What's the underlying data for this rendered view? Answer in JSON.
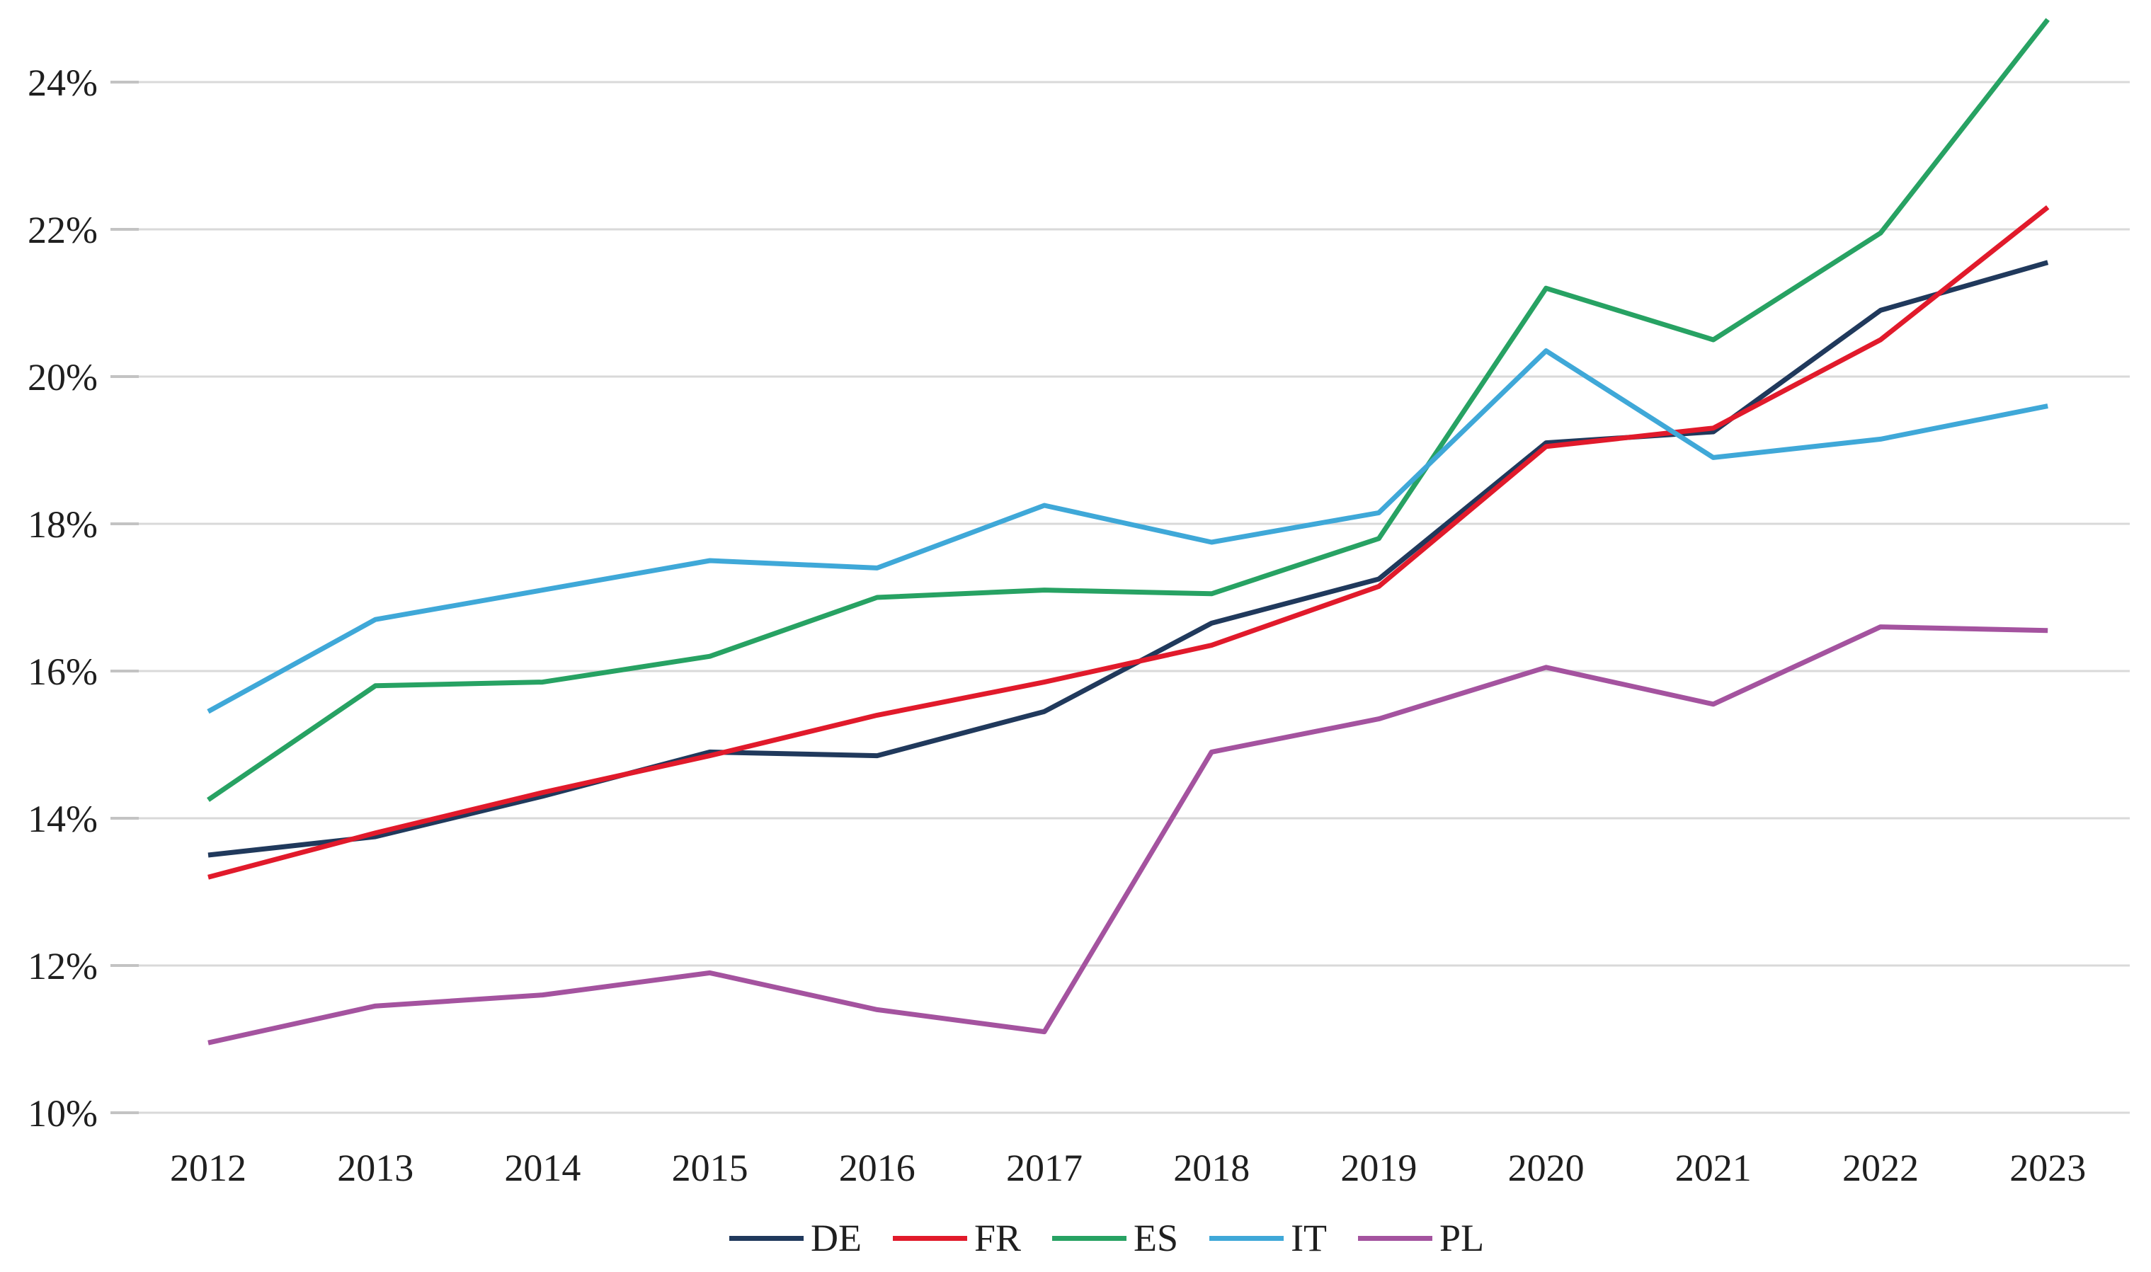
{
  "figure": {
    "background_color": "#ffffff",
    "text_color": "#1f1f1f"
  },
  "chart_data": {
    "type": "line",
    "title": "",
    "xlabel": "",
    "ylabel": "",
    "x_labels": [
      "2012",
      "2013",
      "2014",
      "2015",
      "2016",
      "2017",
      "2018",
      "2019",
      "2020",
      "2021",
      "2022",
      "2023"
    ],
    "y_axis": {
      "ticks": [
        "24%",
        "22%",
        "20%",
        "18%",
        "16%",
        "14%",
        "12%",
        "10%"
      ],
      "tick_values": [
        24,
        22,
        20,
        18,
        16,
        14,
        12,
        10
      ],
      "min": 10,
      "max": 24,
      "unit": "%",
      "grid": true,
      "grid_color": "#d9d9d9",
      "tick_mark_color": "#c3c3c3"
    },
    "series": [
      {
        "name": "DE",
        "color": "#20395c",
        "values": [
          13.5,
          13.75,
          14.3,
          14.9,
          14.85,
          15.45,
          16.65,
          17.25,
          19.1,
          19.25,
          20.9,
          21.55
        ]
      },
      {
        "name": "FR",
        "color": "#e11a2b",
        "values": [
          13.2,
          13.8,
          14.35,
          14.85,
          15.4,
          15.85,
          16.35,
          17.15,
          19.05,
          19.3,
          20.5,
          22.3
        ]
      },
      {
        "name": "ES",
        "color": "#27a263",
        "values": [
          14.25,
          15.8,
          15.85,
          16.2,
          17.0,
          17.1,
          17.05,
          17.8,
          21.2,
          20.5,
          21.95,
          24.85
        ]
      },
      {
        "name": "IT",
        "color": "#3fa8d8",
        "values": [
          15.45,
          16.7,
          17.1,
          17.5,
          17.4,
          18.25,
          17.75,
          18.15,
          20.35,
          18.9,
          19.15,
          19.6
        ]
      },
      {
        "name": "PL",
        "color": "#a4539f",
        "values": [
          10.95,
          11.45,
          11.6,
          11.9,
          11.4,
          11.1,
          14.9,
          15.35,
          16.05,
          15.55,
          16.6,
          16.55
        ]
      }
    ],
    "legend": {
      "position": "bottom-center",
      "items": [
        "DE",
        "FR",
        "ES",
        "IT",
        "PL"
      ]
    }
  }
}
